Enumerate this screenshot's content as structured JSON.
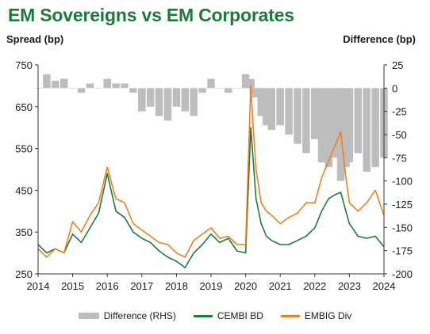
{
  "chart_data": {
    "type": "line",
    "title": "EM Sovereigns vs EM Corporates",
    "ylabel": "Spread (bp)",
    "y2label": "Difference (bp)",
    "xlim": [
      2014,
      2024
    ],
    "ylim": [
      250,
      750
    ],
    "y2lim": [
      -200,
      25
    ],
    "x_ticks": [
      "2014",
      "2015",
      "2016",
      "2017",
      "2018",
      "2019",
      "2020",
      "2021",
      "2022",
      "2023",
      "2024"
    ],
    "y_ticks": [
      "250",
      "350",
      "450",
      "550",
      "650",
      "750"
    ],
    "y2_ticks": [
      "25",
      "0",
      "-25",
      "-50",
      "-75",
      "-100",
      "-125",
      "-150",
      "-175",
      "-200"
    ],
    "colors": {
      "difference": "#bdbdbd",
      "cembi": "#1e7a3a",
      "embig": "#ef7d22"
    },
    "legend": [
      "Difference (RHS)",
      "CEMBI BD",
      "EMBIG Div"
    ],
    "legend_position": "bottom",
    "x": [
      2014.0,
      2014.25,
      2014.5,
      2014.75,
      2015.0,
      2015.25,
      2015.5,
      2015.75,
      2016.0,
      2016.25,
      2016.5,
      2016.75,
      2017.0,
      2017.25,
      2017.5,
      2017.75,
      2018.0,
      2018.25,
      2018.5,
      2018.75,
      2019.0,
      2019.25,
      2019.5,
      2019.75,
      2020.0,
      2020.15,
      2020.22,
      2020.3,
      2020.45,
      2020.6,
      2020.75,
      2021.0,
      2021.25,
      2021.5,
      2021.75,
      2022.0,
      2022.2,
      2022.4,
      2022.6,
      2022.75,
      2022.9,
      2023.0,
      2023.25,
      2023.5,
      2023.75,
      2024.0
    ],
    "series": [
      {
        "name": "Difference (RHS)",
        "axis": "right",
        "values": [
          0,
          15,
          8,
          10,
          0,
          -5,
          5,
          0,
          10,
          5,
          5,
          -5,
          -25,
          -20,
          -30,
          -35,
          -20,
          -25,
          -30,
          -5,
          10,
          0,
          -5,
          0,
          15,
          10,
          -5,
          -10,
          -30,
          -40,
          -45,
          -40,
          -50,
          -60,
          -70,
          -55,
          -80,
          -85,
          -75,
          -100,
          -85,
          -80,
          -70,
          -90,
          -85,
          -75
        ]
      },
      {
        "name": "CEMBI BD",
        "axis": "left",
        "values": [
          320,
          300,
          310,
          300,
          345,
          325,
          360,
          395,
          490,
          400,
          385,
          350,
          335,
          325,
          305,
          290,
          280,
          265,
          300,
          320,
          345,
          325,
          335,
          305,
          300,
          600,
          520,
          430,
          370,
          340,
          330,
          320,
          320,
          330,
          340,
          360,
          400,
          430,
          440,
          445,
          400,
          370,
          340,
          335,
          340,
          315
        ]
      },
      {
        "name": "EMBIG Div",
        "axis": "left",
        "values": [
          310,
          290,
          310,
          300,
          375,
          350,
          390,
          420,
          505,
          430,
          420,
          370,
          355,
          340,
          325,
          320,
          300,
          290,
          330,
          345,
          360,
          335,
          340,
          320,
          320,
          700,
          600,
          500,
          420,
          400,
          390,
          370,
          385,
          395,
          420,
          420,
          480,
          520,
          560,
          590,
          480,
          420,
          400,
          420,
          450,
          390
        ]
      }
    ]
  }
}
